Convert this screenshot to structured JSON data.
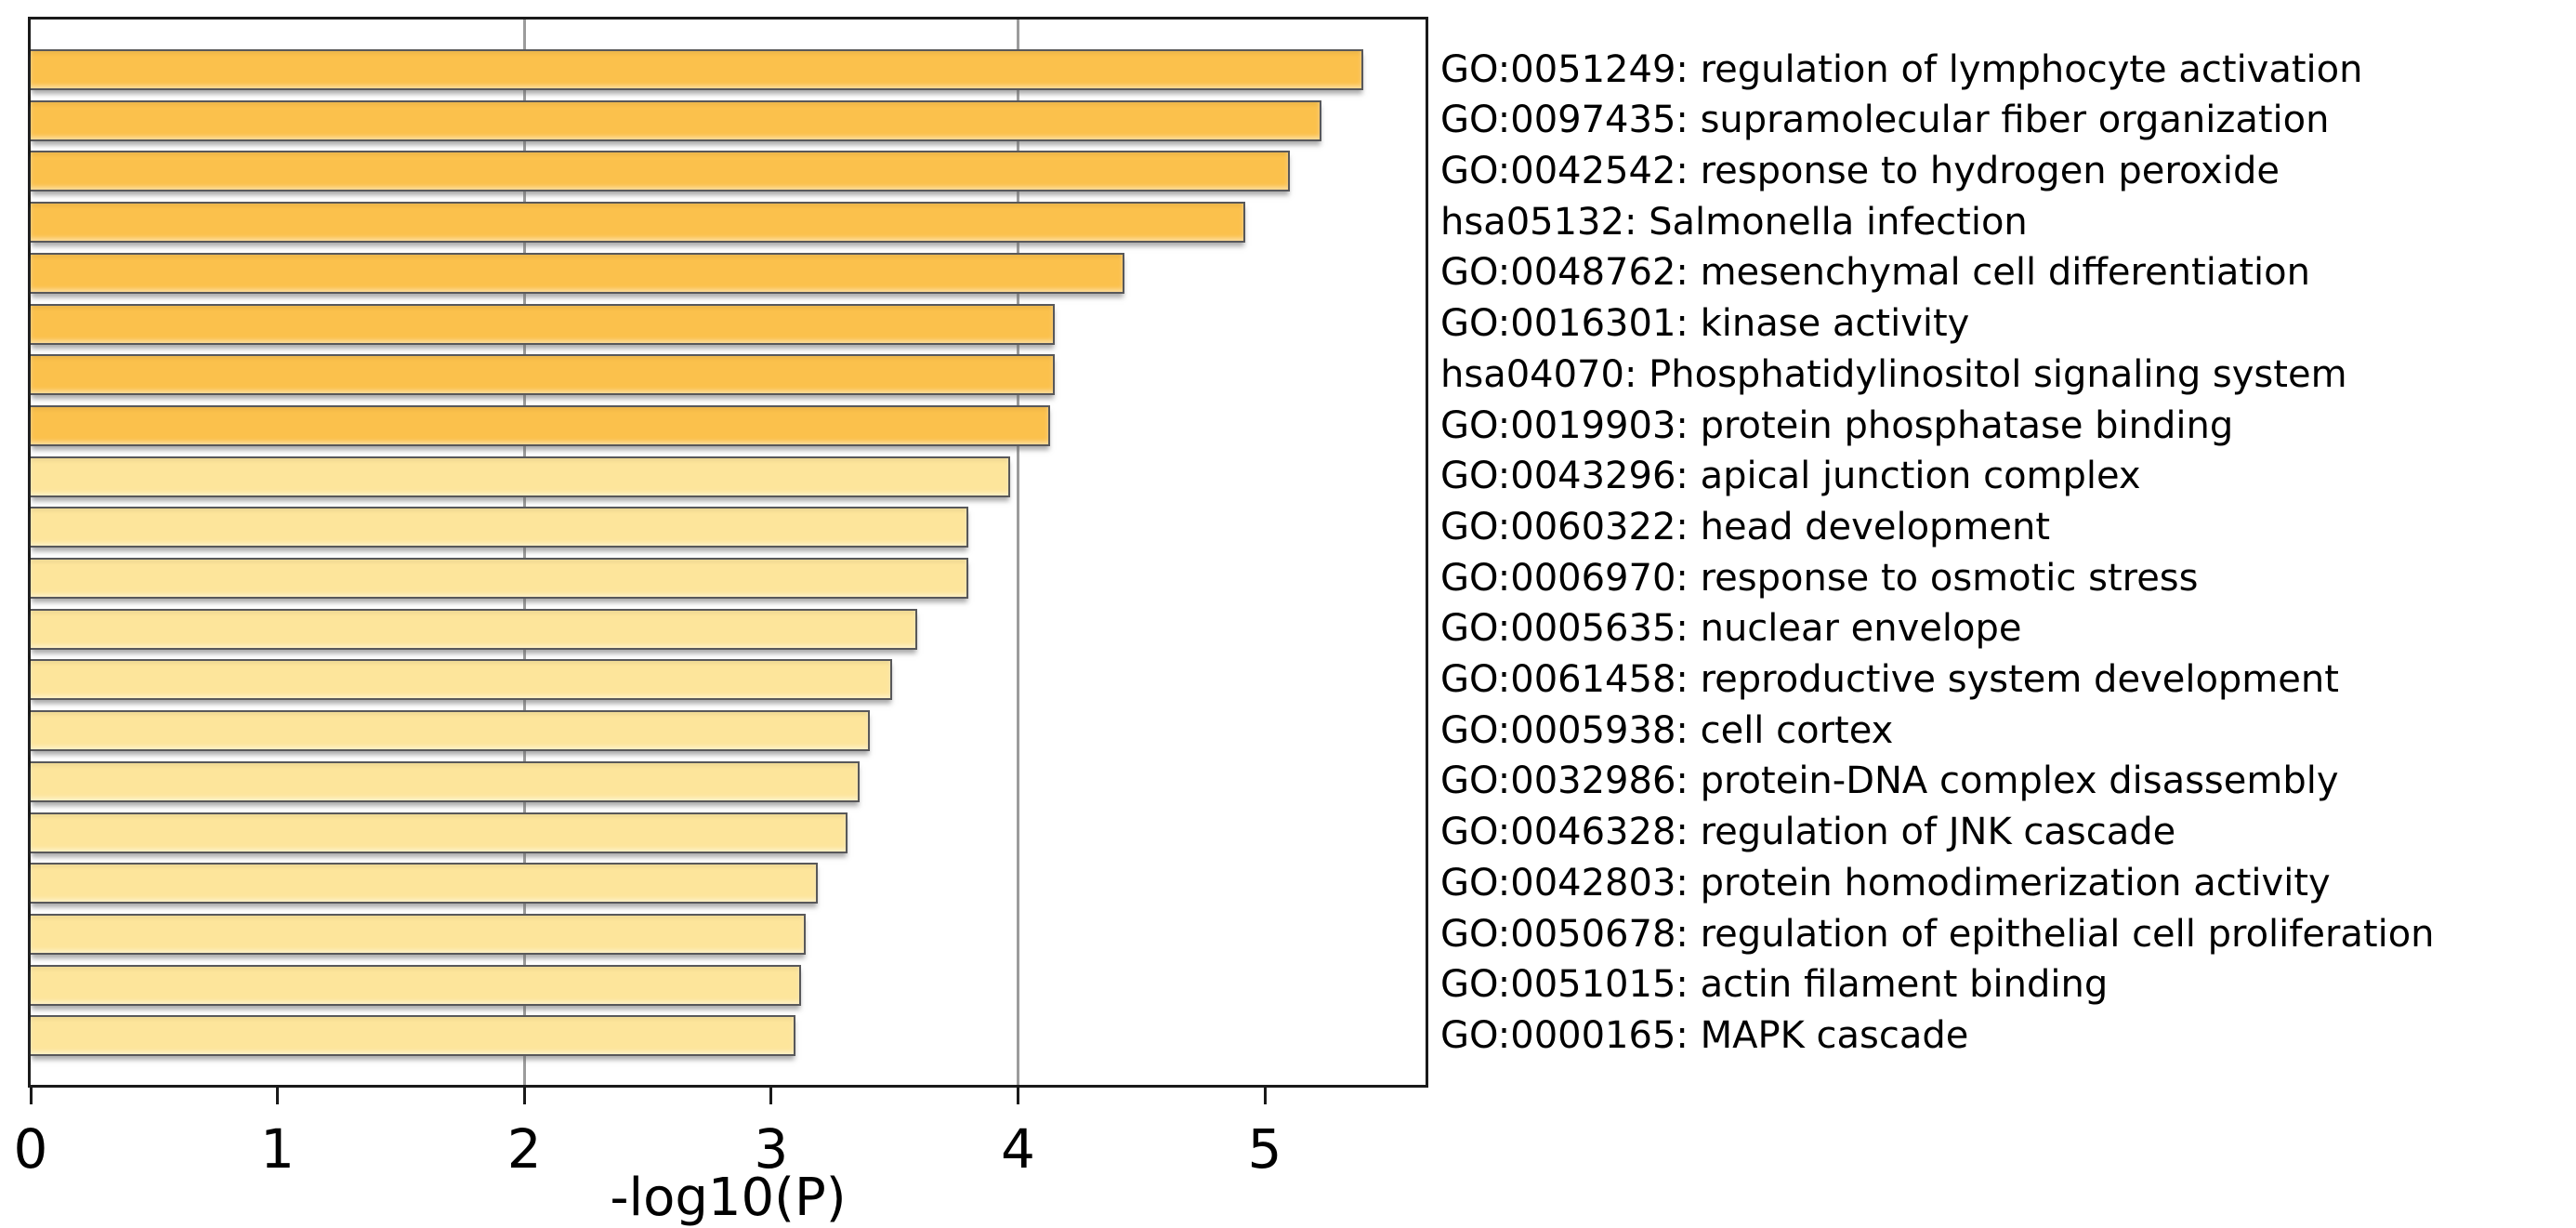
{
  "chart_data": {
    "type": "bar",
    "orientation": "horizontal",
    "title": "",
    "xlabel": "-log10(P)",
    "ylabel": "",
    "xlim": [
      0,
      5.65
    ],
    "xticks": [
      0,
      1,
      2,
      3,
      4,
      5
    ],
    "gridlines_x": [
      2,
      4
    ],
    "grid": "vertical-only",
    "legend_position": "none",
    "sort": "descending",
    "colors": {
      "bar_high_significance": "#fbc14c",
      "bar_low_significance": "#fde59b",
      "bar_border": "#58585a",
      "gridline": "#9c9c9c",
      "axis": "#1a1a1a",
      "text": "#000000",
      "background": "#ffffff"
    },
    "categories": [
      "GO:0051249: regulation of lymphocyte activation",
      "GO:0097435: supramolecular fiber organization",
      "GO:0042542: response to hydrogen peroxide",
      "hsa05132: Salmonella infection",
      "GO:0048762: mesenchymal cell differentiation",
      "GO:0016301: kinase activity",
      "hsa04070: Phosphatidylinositol signaling system",
      "GO:0019903: protein phosphatase binding",
      "GO:0043296: apical junction complex",
      "GO:0060322: head development",
      "GO:0006970: response to osmotic stress",
      "GO:0005635: nuclear envelope",
      "GO:0061458: reproductive system development",
      "GO:0005938: cell cortex",
      "GO:0032986: protein-DNA complex disassembly",
      "GO:0046328: regulation of JNK cascade",
      "GO:0042803: protein homodimerization activity",
      "GO:0050678: regulation of epithelial cell proliferation",
      "GO:0051015: actin filament binding",
      "GO:0000165: MAPK cascade"
    ],
    "values": [
      5.4,
      5.23,
      5.1,
      4.92,
      4.43,
      4.15,
      4.15,
      4.13,
      3.97,
      3.8,
      3.8,
      3.59,
      3.49,
      3.4,
      3.36,
      3.31,
      3.19,
      3.14,
      3.12,
      3.1
    ],
    "color_tier": [
      "high",
      "high",
      "high",
      "high",
      "high",
      "high",
      "high",
      "high",
      "low",
      "low",
      "low",
      "low",
      "low",
      "low",
      "low",
      "low",
      "low",
      "low",
      "low",
      "low"
    ]
  }
}
